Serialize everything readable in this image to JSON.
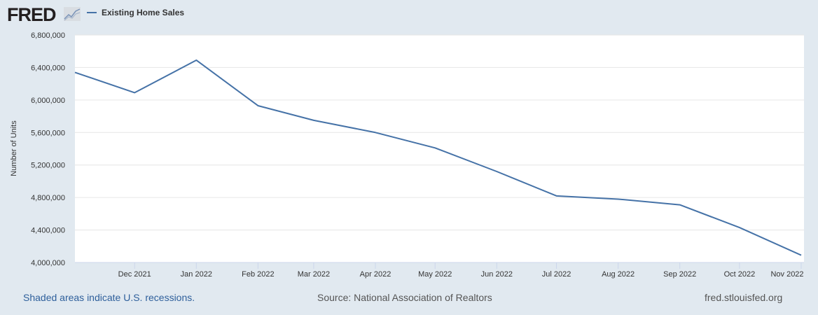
{
  "header": {
    "logo": "FRED",
    "site": "fred.stlouisfed.org"
  },
  "footer": {
    "recessions_note": "Shaded areas indicate U.S. recessions.",
    "source": "Source: National Association of Realtors",
    "site": "fred.stlouisfed.org"
  },
  "chart_data": {
    "type": "line",
    "title": "",
    "xlabel": "",
    "ylabel": "Number of Units",
    "ylim": [
      4000000,
      6800000
    ],
    "yticks": [
      4000000,
      4400000,
      4800000,
      5200000,
      5600000,
      6000000,
      6400000,
      6800000
    ],
    "ytick_labels": [
      "4,000,000",
      "4,400,000",
      "4,800,000",
      "5,200,000",
      "5,600,000",
      "6,000,000",
      "6,400,000",
      "6,800,000"
    ],
    "xtick_labels": [
      "Dec 2021",
      "Jan 2022",
      "Feb 2022",
      "Mar 2022",
      "Apr 2022",
      "May 2022",
      "Jun 2022",
      "Jul 2022",
      "Aug 2022",
      "Sep 2022",
      "Oct 2022",
      "Nov 2022"
    ],
    "grid": true,
    "legend_position": "top-left",
    "series_color": "#4572a7",
    "series": [
      {
        "name": "Existing Home Sales",
        "x": [
          "2021-11",
          "2021-12",
          "2022-01",
          "2022-02",
          "2022-03",
          "2022-04",
          "2022-05",
          "2022-06",
          "2022-07",
          "2022-08",
          "2022-09",
          "2022-10",
          "2022-11"
        ],
        "values": [
          6340000,
          6090000,
          6490000,
          5930000,
          5750000,
          5600000,
          5410000,
          5120000,
          4820000,
          4780000,
          4710000,
          4430000,
          4090000
        ]
      }
    ]
  }
}
